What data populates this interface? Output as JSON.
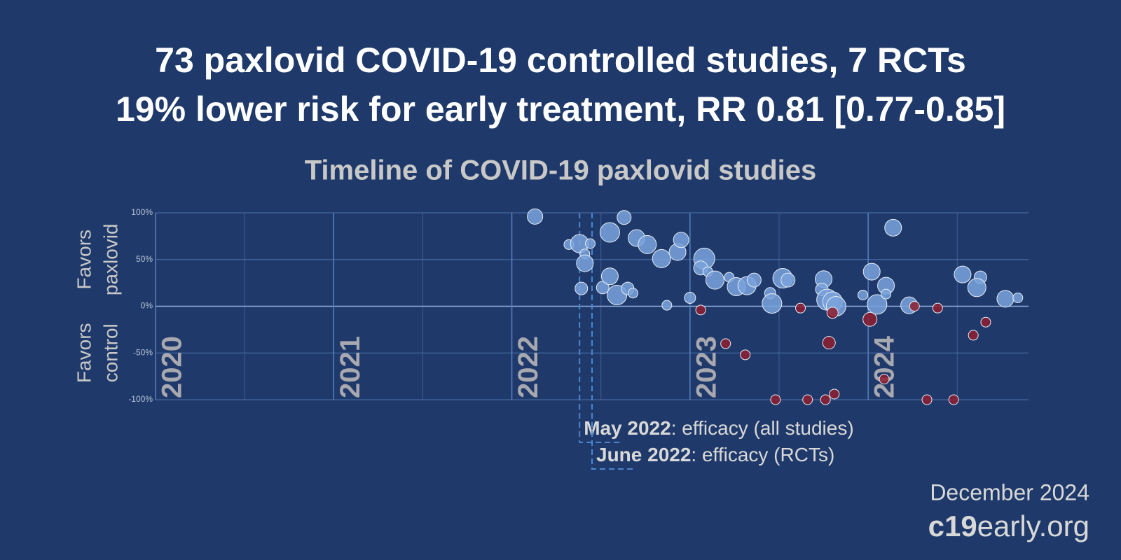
{
  "chart_data": {
    "type": "scatter",
    "title": "73 paxlovid COVID-19 controlled studies, 7 RCTs",
    "subtitle": "19% lower risk for early treatment, RR 0.81 [0.77-0.85]",
    "plot_title": "Timeline of COVID-19 paxlovid studies",
    "ylabel_positive": [
      "Favors",
      "paxlovid"
    ],
    "ylabel_negative": [
      "Favors",
      "control"
    ],
    "xlim": [
      2020,
      2024.9
    ],
    "xticks": [
      2020,
      2021,
      2022,
      2023,
      2024
    ],
    "xminor": [
      2020.5,
      2021.5,
      2022.5,
      2023.5,
      2024.5
    ],
    "ylim": [
      -100,
      100
    ],
    "yticks": [
      {
        "value": -100,
        "label": "-100%"
      },
      {
        "value": -50,
        "label": "-50%"
      },
      {
        "value": 0,
        "label": "0%"
      },
      {
        "value": 50,
        "label": "50%"
      },
      {
        "value": 100,
        "label": "100%"
      }
    ],
    "grid": true,
    "series": [
      {
        "color": "#7aa3dc",
        "x": [
          2022.13,
          2022.32,
          2022.38,
          2022.41,
          2022.41,
          2022.44,
          2022.39,
          2022.51,
          2022.55,
          2022.55,
          2022.59,
          2022.63,
          2022.65,
          2022.68,
          2022.7,
          2022.76,
          2022.84,
          2022.87,
          2022.93,
          2022.95,
          2023.0,
          2023.08,
          2023.06,
          2023.1,
          2023.14,
          2023.22,
          2023.26,
          2023.32,
          2023.36,
          2023.45,
          2023.46,
          2023.52,
          2023.55,
          2023.75,
          2023.74,
          2023.77,
          2023.8,
          2023.82,
          2023.97,
          2024.02,
          2024.05,
          2024.1,
          2024.1,
          2024.14,
          2024.23,
          2024.53,
          2024.63,
          2024.61,
          2024.77,
          2024.84
        ],
        "values": [
          96,
          66,
          67,
          56,
          46,
          67,
          19,
          20,
          79,
          32,
          12,
          95,
          19,
          14,
          73,
          66,
          51,
          1,
          58,
          71,
          9,
          51,
          41,
          37,
          28,
          31,
          21,
          22,
          28,
          14,
          3,
          30,
          28,
          29,
          18,
          7,
          5,
          0,
          12,
          37,
          2,
          22,
          13,
          84,
          1,
          34,
          31,
          20,
          8,
          9
        ],
        "sizes": [
          11,
          7,
          13,
          7,
          12,
          7,
          9,
          9,
          14,
          12,
          14,
          10,
          9,
          7,
          12,
          13,
          13,
          7,
          12,
          11,
          8,
          15,
          10,
          7,
          13,
          7,
          13,
          13,
          10,
          8,
          14,
          14,
          10,
          12,
          9,
          15,
          14,
          14,
          7,
          12,
          14,
          12,
          7,
          12,
          12,
          12,
          9,
          13,
          12,
          7
        ]
      },
      {
        "color": "#8e1f30",
        "x": [
          2023.06,
          2023.2,
          2023.31,
          2023.48,
          2023.62,
          2023.66,
          2023.76,
          2023.78,
          2023.8,
          2023.81,
          2024.01,
          2024.09,
          2024.26,
          2024.33,
          2024.39,
          2024.48,
          2024.59,
          2024.66
        ],
        "values": [
          -4,
          -40,
          -52,
          -100,
          -2,
          -100,
          -100,
          -39,
          -7,
          -94,
          -14,
          -78,
          0,
          -100,
          -2,
          -100,
          -31,
          -17
        ],
        "sizes": [
          7,
          7,
          7,
          7,
          7,
          7,
          7,
          9,
          8,
          7,
          10,
          7,
          7,
          7,
          7,
          7,
          7,
          7
        ]
      }
    ],
    "annotations": [
      {
        "x": 2022.38,
        "bold": "May 2022",
        "text": ": efficacy (all studies)"
      },
      {
        "x": 2022.45,
        "bold": "June 2022",
        "text": ": efficacy (RCTs)"
      }
    ],
    "date": "December 2024",
    "site_bold": "c19",
    "site": "early.org"
  }
}
